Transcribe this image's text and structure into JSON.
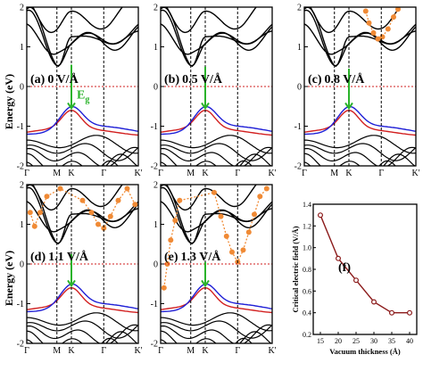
{
  "figure": {
    "y_axis_label": "Energy (eV)",
    "energy_ticks": [
      "2",
      "1",
      "0",
      "-1",
      "-2"
    ],
    "kpath_labels": [
      "Γ",
      "M",
      "K",
      "Γ",
      "K'"
    ],
    "gap_label": "E",
    "gap_label_sub": "g",
    "colors": {
      "bands": "#000000",
      "valence_top": "#1f1fd6",
      "conduction_edge": "#d21f1f",
      "gap_arrow": "#2bb32b",
      "extra_states": "#f08a35",
      "fermi_line": "#d21f1f"
    }
  },
  "panels": [
    {
      "label": "(a)",
      "field": "0 V/Å"
    },
    {
      "label": "(b)",
      "field": "0.5 V/Å"
    },
    {
      "label": "(c)",
      "field": "0.8 V/Å"
    },
    {
      "label": "(d)",
      "field": "1.1 V/Å"
    },
    {
      "label": "(e)",
      "field": "1.3 V/Å"
    }
  ],
  "chart_data": [
    {
      "type": "line",
      "panel": "(f)",
      "xlabel": "Vacuum thickness (Å)",
      "ylabel": "Critical electric field (V/Å)",
      "x": [
        15,
        20,
        25,
        30,
        35,
        40
      ],
      "y": [
        1.3,
        0.9,
        0.7,
        0.5,
        0.4,
        0.4
      ],
      "xlim": [
        13,
        42
      ],
      "ylim": [
        0.2,
        1.4
      ],
      "xticks": [
        "15",
        "20",
        "25",
        "30",
        "35",
        "40"
      ],
      "yticks": [
        "0.2",
        "0.4",
        "0.6",
        "0.8",
        "1.0",
        "1.2",
        "1.4"
      ],
      "line_color": "#8b1a1a"
    }
  ]
}
